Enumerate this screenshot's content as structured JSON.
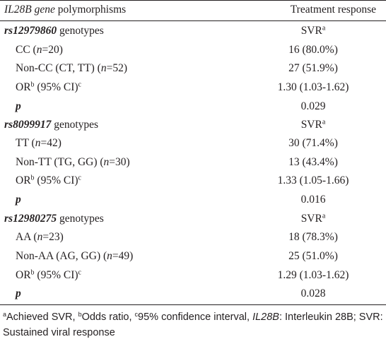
{
  "header": {
    "col1_italic": "IL28B gene",
    "col1_rest": " polymorphisms",
    "col2": "Treatment response"
  },
  "groups": [
    {
      "snp": "rs12979860",
      "genotypes_word": " genotypes",
      "response_label": "SVR",
      "response_sup": "a",
      "row1": {
        "label_pre": "CC (",
        "n": "n",
        "label_post": "=20)",
        "value": "16 (80.0%)"
      },
      "row2": {
        "label_pre": "Non-CC (CT, TT) (",
        "n": "n",
        "label_post": "=52)",
        "value": "27 (51.9%)"
      },
      "or": {
        "label": "OR",
        "sup_b": "b",
        "ci": " (95% CI)",
        "sup_c": "c",
        "value": "1.30 (1.03-1.62)"
      },
      "p": {
        "label": "p",
        "value": "0.029"
      }
    },
    {
      "snp": "rs8099917",
      "genotypes_word": " genotypes",
      "response_label": "SVR",
      "response_sup": "a",
      "row1": {
        "label_pre": "TT (",
        "n": "n",
        "label_post": "=42)",
        "value": "30 (71.4%)"
      },
      "row2": {
        "label_pre": "Non-TT (TG, GG) (",
        "n": "n",
        "label_post": "=30)",
        "value": "13 (43.4%)"
      },
      "or": {
        "label": "OR",
        "sup_b": "b",
        "ci": " (95% CI)",
        "sup_c": "c",
        "value": "1.33 (1.05-1.66)"
      },
      "p": {
        "label": "p",
        "value": "0.016"
      }
    },
    {
      "snp": "rs12980275",
      "genotypes_word": " genotypes",
      "response_label": "SVR",
      "response_sup": "a",
      "row1": {
        "label_pre": "AA (",
        "n": "n",
        "label_post": "=23)",
        "value": "18 (78.3%)"
      },
      "row2": {
        "label_pre": "Non-AA (AG, GG) (",
        "n": "n",
        "label_post": "=49)",
        "value": "25 (51.0%)"
      },
      "or": {
        "label": "OR",
        "sup_b": "b",
        "ci": " (95% CI)",
        "sup_c": "c",
        "value": "1.29 (1.03-1.62)"
      },
      "p": {
        "label": "p",
        "value": "0.028"
      }
    }
  ],
  "footnote": {
    "sup_a": "a",
    "part1": "Achieved SVR, ",
    "sup_b": "b",
    "part2": "Odds ratio, ",
    "sup_c": "c",
    "part3": "95% confidence interval, ",
    "gene_italic": "IL28B",
    "part4": ": Interleukin 28B; SVR: Sustained viral response"
  }
}
